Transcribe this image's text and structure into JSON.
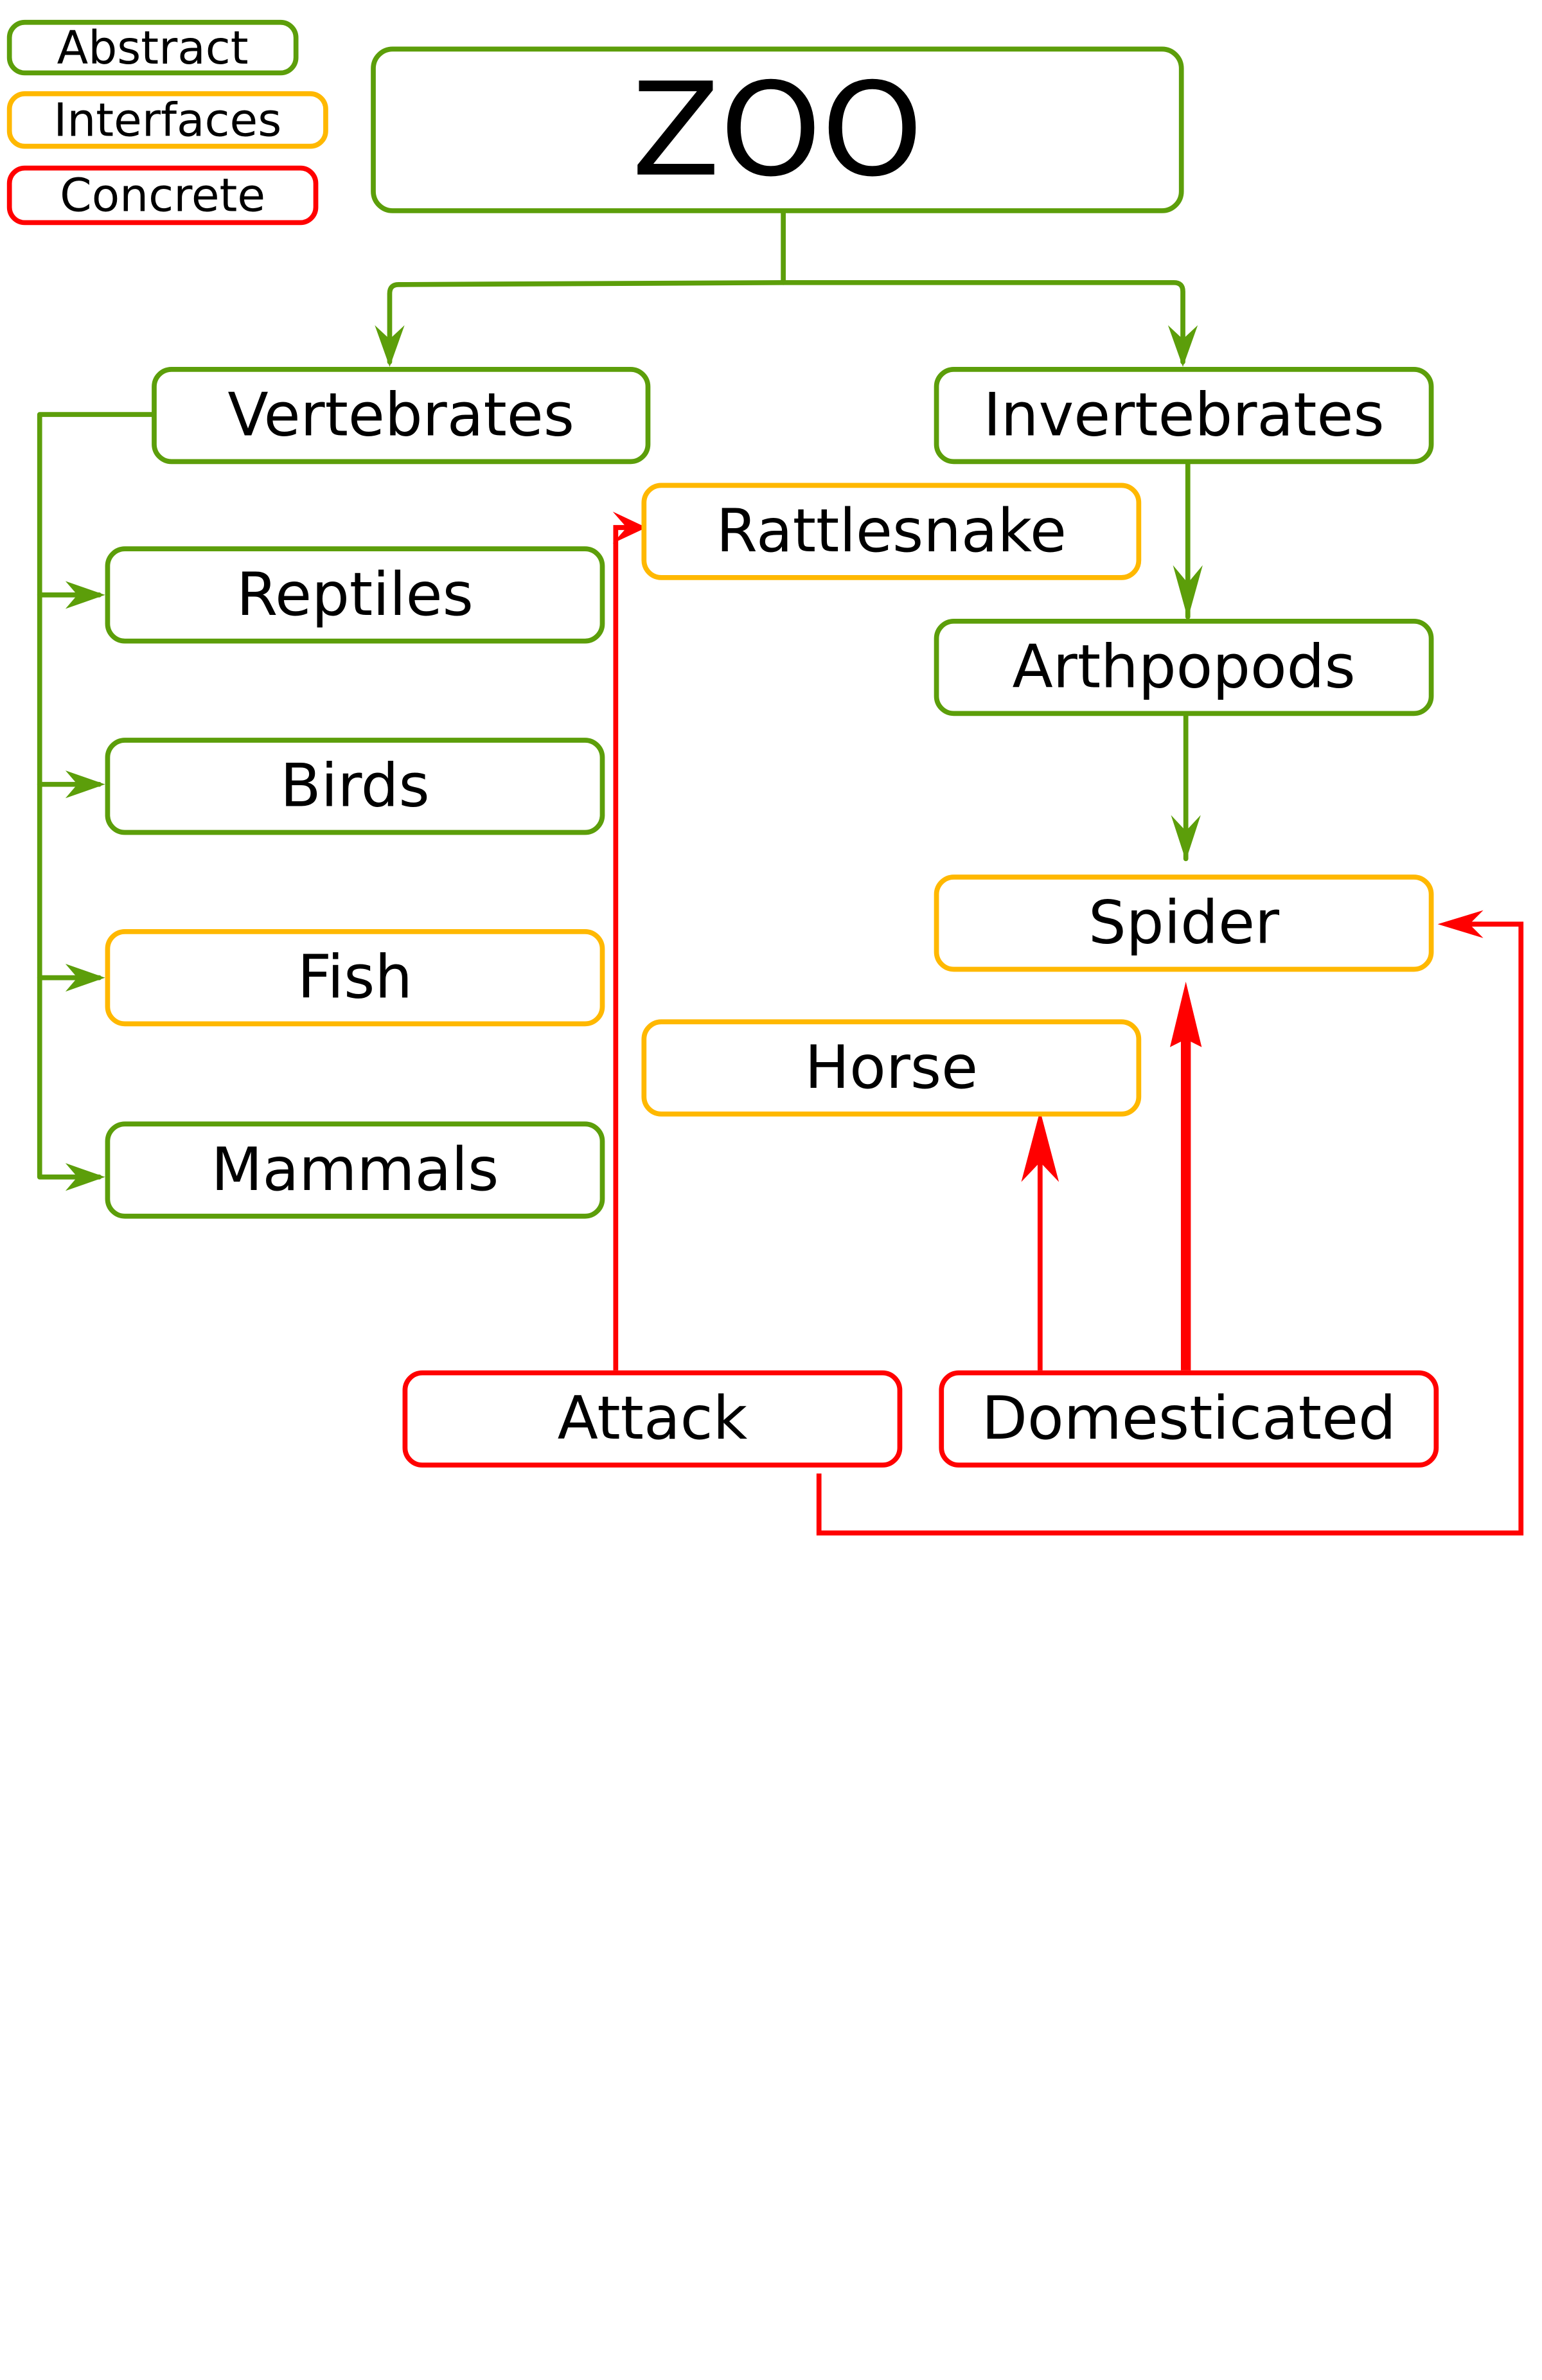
{
  "legend": {
    "abstract": "Abstract",
    "interfaces": "Interfaces",
    "concrete": "Concrete"
  },
  "nodes": {
    "zoo": "ZOO",
    "vertebrates": "Vertebrates",
    "invertebrates": "Invertebrates",
    "rattlesnake": "Rattlesnake",
    "reptiles": "Reptiles",
    "arthpopods": "Arthpopods",
    "birds": "Birds",
    "spider": "Spider",
    "fish": "Fish",
    "horse": "Horse",
    "mammals": "Mammals",
    "attack": "Attack",
    "domesticated": "Domesticated"
  },
  "colors": {
    "abstract": "#5c9e0a",
    "interface": "#ffb800",
    "concrete": "#ff0000"
  }
}
